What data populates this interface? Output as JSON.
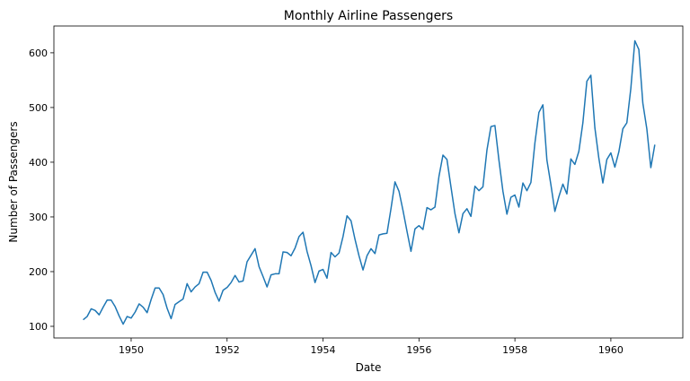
{
  "chart_data": {
    "type": "line",
    "title": "Monthly Airline Passengers",
    "xlabel": "Date",
    "ylabel": "Number of Passengers",
    "xlim": [
      1948.39,
      1961.5
    ],
    "ylim": [
      78.7,
      649
    ],
    "xticks": [
      1950,
      1952,
      1954,
      1956,
      1958,
      1960
    ],
    "xtick_labels": [
      "1950",
      "1952",
      "1954",
      "1956",
      "1958",
      "1960"
    ],
    "yticks": [
      100,
      200,
      300,
      400,
      500,
      600
    ],
    "ytick_labels": [
      "100",
      "200",
      "300",
      "400",
      "500",
      "600"
    ],
    "grid": false,
    "start": "1949-01",
    "frequency": "monthly",
    "series": [
      {
        "name": "Passengers",
        "color": "#1f77b4",
        "values": [
          112,
          118,
          132,
          129,
          121,
          135,
          148,
          148,
          136,
          119,
          104,
          118,
          115,
          126,
          141,
          135,
          125,
          149,
          170,
          170,
          158,
          133,
          114,
          140,
          145,
          150,
          178,
          163,
          172,
          178,
          199,
          199,
          184,
          162,
          146,
          166,
          171,
          180,
          193,
          181,
          183,
          218,
          230,
          242,
          209,
          191,
          172,
          194,
          196,
          196,
          236,
          235,
          229,
          243,
          264,
          272,
          237,
          211,
          180,
          201,
          204,
          188,
          235,
          227,
          234,
          264,
          302,
          293,
          259,
          229,
          203,
          229,
          242,
          233,
          267,
          269,
          270,
          315,
          364,
          347,
          312,
          274,
          237,
          278,
          284,
          277,
          317,
          313,
          318,
          374,
          413,
          405,
          355,
          306,
          271,
          306,
          315,
          301,
          356,
          348,
          355,
          422,
          465,
          467,
          404,
          347,
          305,
          336,
          340,
          318,
          362,
          348,
          363,
          435,
          491,
          505,
          404,
          359,
          310,
          337,
          360,
          342,
          406,
          396,
          420,
          472,
          548,
          559,
          463,
          407,
          362,
          405,
          417,
          391,
          419,
          461,
          472,
          535,
          622,
          606,
          508,
          461,
          390,
          432
        ]
      }
    ]
  }
}
